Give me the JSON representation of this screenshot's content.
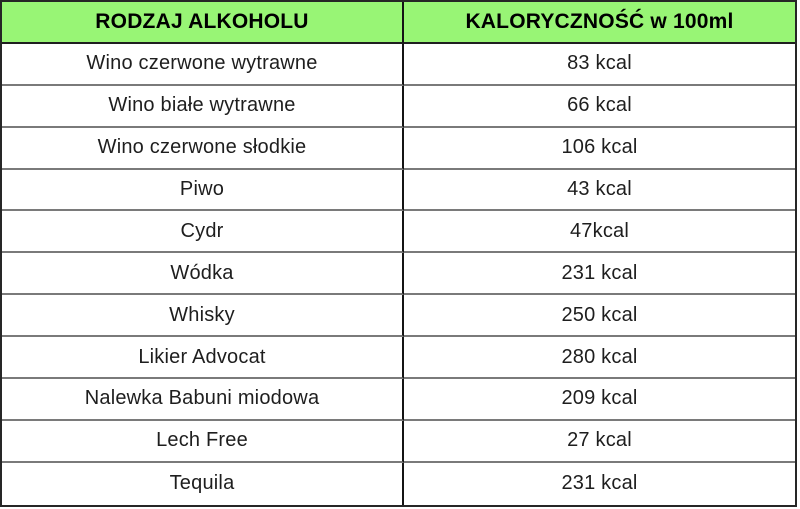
{
  "table": {
    "title_semantic": "Caloric content of alcohol types per 100 ml",
    "headers": {
      "type_label": "RODZAJ ALKOHOLU",
      "calories_label": "KALORYCZNOŚĆ w 100ml"
    },
    "rows": [
      {
        "type": "Wino czerwone wytrawne",
        "kcal": "83 kcal"
      },
      {
        "type": "Wino białe wytrawne",
        "kcal": "66 kcal"
      },
      {
        "type": "Wino czerwone słodkie",
        "kcal": "106 kcal"
      },
      {
        "type": "Piwo",
        "kcal": "43 kcal"
      },
      {
        "type": "Cydr",
        "kcal": "47kcal"
      },
      {
        "type": "Wódka",
        "kcal": "231 kcal"
      },
      {
        "type": "Whisky",
        "kcal": "250 kcal"
      },
      {
        "type": "Likier Advocat",
        "kcal": "280 kcal"
      },
      {
        "type": "Nalewka Babuni miodowa",
        "kcal": "209 kcal"
      },
      {
        "type": "Lech Free",
        "kcal": "27 kcal"
      },
      {
        "type": "Tequila",
        "kcal": "231 kcal"
      }
    ]
  },
  "chart_data": {
    "type": "table",
    "columns": [
      "RODZAJ ALKOHOLU",
      "KALORYCZNOŚĆ w 100ml"
    ],
    "categories": [
      "Wino czerwone wytrawne",
      "Wino białe wytrawne",
      "Wino czerwone słodkie",
      "Piwo",
      "Cydr",
      "Wódka",
      "Whisky",
      "Likier Advocat",
      "Nalewka Babuni miodowa",
      "Lech Free",
      "Tequila"
    ],
    "values": [
      83,
      66,
      106,
      43,
      47,
      231,
      250,
      280,
      209,
      27,
      231
    ],
    "value_unit": "kcal per 100ml",
    "title": "",
    "layout": {
      "header_bg": "#98f575",
      "outer_border": "#262626",
      "row_divider": "#7a7a7a",
      "column_divider": "#141414",
      "grid": "on"
    }
  }
}
